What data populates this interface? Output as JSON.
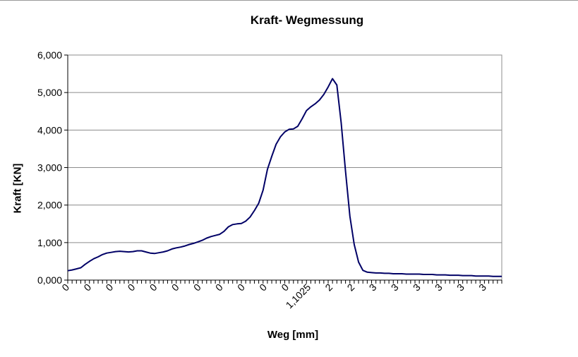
{
  "chart_data": {
    "type": "line",
    "title": "Kraft- Wegmessung",
    "xlabel": "Weg [mm]",
    "ylabel": "Kraft  [KN]",
    "ylim": [
      0,
      6
    ],
    "yticks": [
      0,
      1,
      2,
      3,
      4,
      5,
      6
    ],
    "ytick_labels": [
      "0,000",
      "1,000",
      "2,000",
      "3,000",
      "4,000",
      "5,000",
      "6,000"
    ],
    "xtick_labels": [
      "0",
      "0",
      "0",
      "0",
      "0",
      "0",
      "0",
      "0",
      "0",
      "0",
      "0",
      "1,1025",
      "2",
      "2",
      "3",
      "3",
      "3",
      "3",
      "3",
      "3"
    ],
    "grid": "horizontal",
    "legend": "none",
    "colors": {
      "line": "#000066",
      "grid": "#8c8c8c",
      "axis": "#000000"
    },
    "series": [
      {
        "x_index": [
          0,
          2,
          4,
          6,
          8,
          10,
          12,
          14,
          16,
          18,
          20,
          22,
          24,
          26,
          28,
          30,
          32,
          34,
          36,
          38,
          40,
          42,
          44,
          46,
          48,
          50,
          52,
          54,
          56,
          58,
          60,
          62,
          64,
          66,
          68,
          70,
          72,
          74,
          76,
          78,
          80,
          82,
          84,
          86,
          88,
          90,
          92,
          94,
          96,
          98,
          100,
          102,
          104,
          106,
          108,
          110,
          112,
          114,
          116,
          118,
          120,
          122,
          124,
          126,
          128,
          130,
          132,
          134,
          136,
          138,
          140,
          142,
          144,
          146,
          148,
          150,
          152,
          154,
          156,
          158,
          160,
          162,
          164,
          166,
          168,
          170,
          172,
          174,
          176,
          178,
          180,
          182,
          184,
          186,
          188,
          190,
          192,
          194,
          196,
          198,
          200
        ],
        "values": [
          0.25,
          0.27,
          0.3,
          0.33,
          0.42,
          0.5,
          0.57,
          0.62,
          0.68,
          0.72,
          0.74,
          0.76,
          0.77,
          0.76,
          0.75,
          0.76,
          0.78,
          0.78,
          0.75,
          0.72,
          0.71,
          0.73,
          0.75,
          0.78,
          0.83,
          0.86,
          0.88,
          0.91,
          0.95,
          0.98,
          1.02,
          1.06,
          1.12,
          1.16,
          1.19,
          1.22,
          1.3,
          1.42,
          1.48,
          1.5,
          1.51,
          1.57,
          1.68,
          1.85,
          2.05,
          2.4,
          2.95,
          3.3,
          3.62,
          3.82,
          3.95,
          4.02,
          4.03,
          4.1,
          4.3,
          4.52,
          4.62,
          4.7,
          4.8,
          4.95,
          5.15,
          5.37,
          5.2,
          4.2,
          2.9,
          1.7,
          0.95,
          0.48,
          0.26,
          0.21,
          0.2,
          0.19,
          0.19,
          0.18,
          0.18,
          0.17,
          0.17,
          0.17,
          0.16,
          0.16,
          0.16,
          0.16,
          0.15,
          0.15,
          0.15,
          0.14,
          0.14,
          0.14,
          0.13,
          0.13,
          0.13,
          0.12,
          0.12,
          0.12,
          0.11,
          0.11,
          0.11,
          0.11,
          0.1,
          0.1,
          0.1
        ]
      }
    ]
  }
}
